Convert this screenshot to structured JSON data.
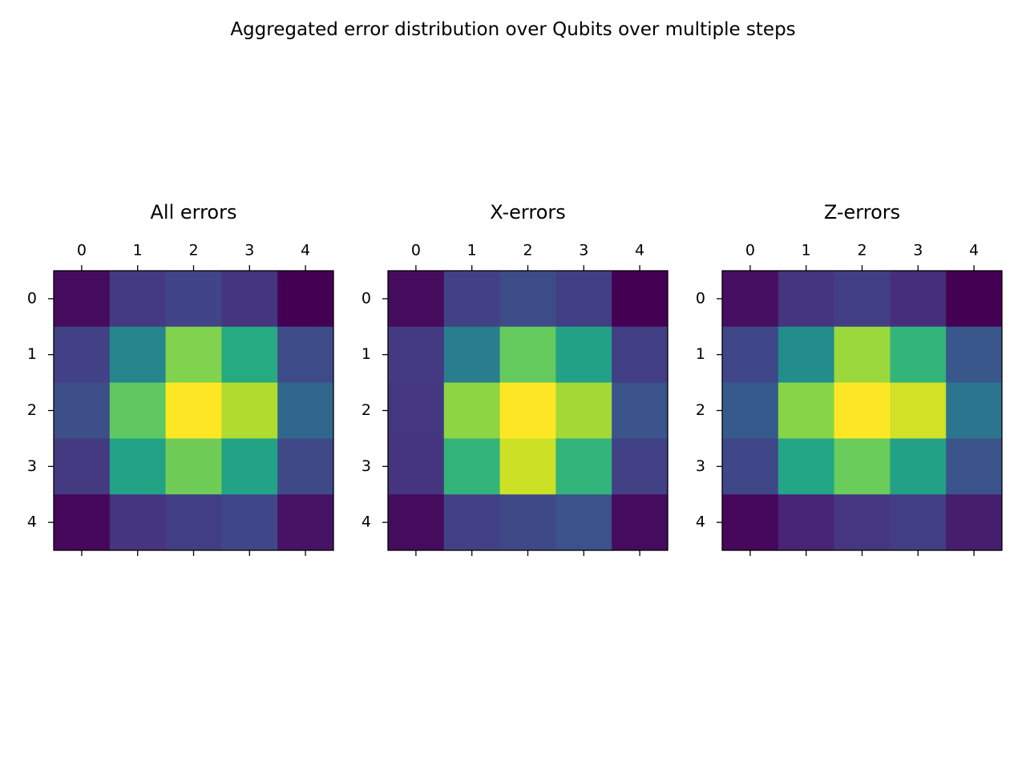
{
  "figure": {
    "title": "Aggregated error distribution over Qubits over multiple steps"
  },
  "chart_data": [
    {
      "type": "heatmap",
      "title": "All errors",
      "colormap": "viridis",
      "x_ticks": [
        "0",
        "1",
        "2",
        "3",
        "4"
      ],
      "y_ticks": [
        "0",
        "1",
        "2",
        "3",
        "4"
      ],
      "x_tick_position": "top",
      "values": [
        [
          0.03,
          0.17,
          0.2,
          0.15,
          0.0
        ],
        [
          0.19,
          0.45,
          0.81,
          0.61,
          0.23
        ],
        [
          0.24,
          0.75,
          1.0,
          0.88,
          0.33
        ],
        [
          0.17,
          0.58,
          0.78,
          0.58,
          0.22
        ],
        [
          0.02,
          0.15,
          0.18,
          0.21,
          0.05
        ]
      ]
    },
    {
      "type": "heatmap",
      "title": "X-errors",
      "colormap": "viridis",
      "x_ticks": [
        "0",
        "1",
        "2",
        "3",
        "4"
      ],
      "y_ticks": [
        "0",
        "1",
        "2",
        "3",
        "4"
      ],
      "x_tick_position": "top",
      "values": [
        [
          0.03,
          0.19,
          0.23,
          0.18,
          0.0
        ],
        [
          0.17,
          0.42,
          0.76,
          0.57,
          0.18
        ],
        [
          0.16,
          0.83,
          1.0,
          0.86,
          0.26
        ],
        [
          0.15,
          0.65,
          0.92,
          0.65,
          0.19
        ],
        [
          0.03,
          0.19,
          0.22,
          0.25,
          0.03
        ]
      ]
    },
    {
      "type": "heatmap",
      "title": "Z-errors",
      "colormap": "viridis",
      "x_ticks": [
        "0",
        "1",
        "2",
        "3",
        "4"
      ],
      "y_ticks": [
        "0",
        "1",
        "2",
        "3",
        "4"
      ],
      "x_tick_position": "top",
      "values": [
        [
          0.04,
          0.15,
          0.18,
          0.13,
          0.0
        ],
        [
          0.21,
          0.48,
          0.85,
          0.65,
          0.27
        ],
        [
          0.28,
          0.82,
          1.0,
          0.93,
          0.39
        ],
        [
          0.21,
          0.59,
          0.77,
          0.57,
          0.26
        ],
        [
          0.02,
          0.1,
          0.16,
          0.18,
          0.08
        ]
      ]
    }
  ]
}
